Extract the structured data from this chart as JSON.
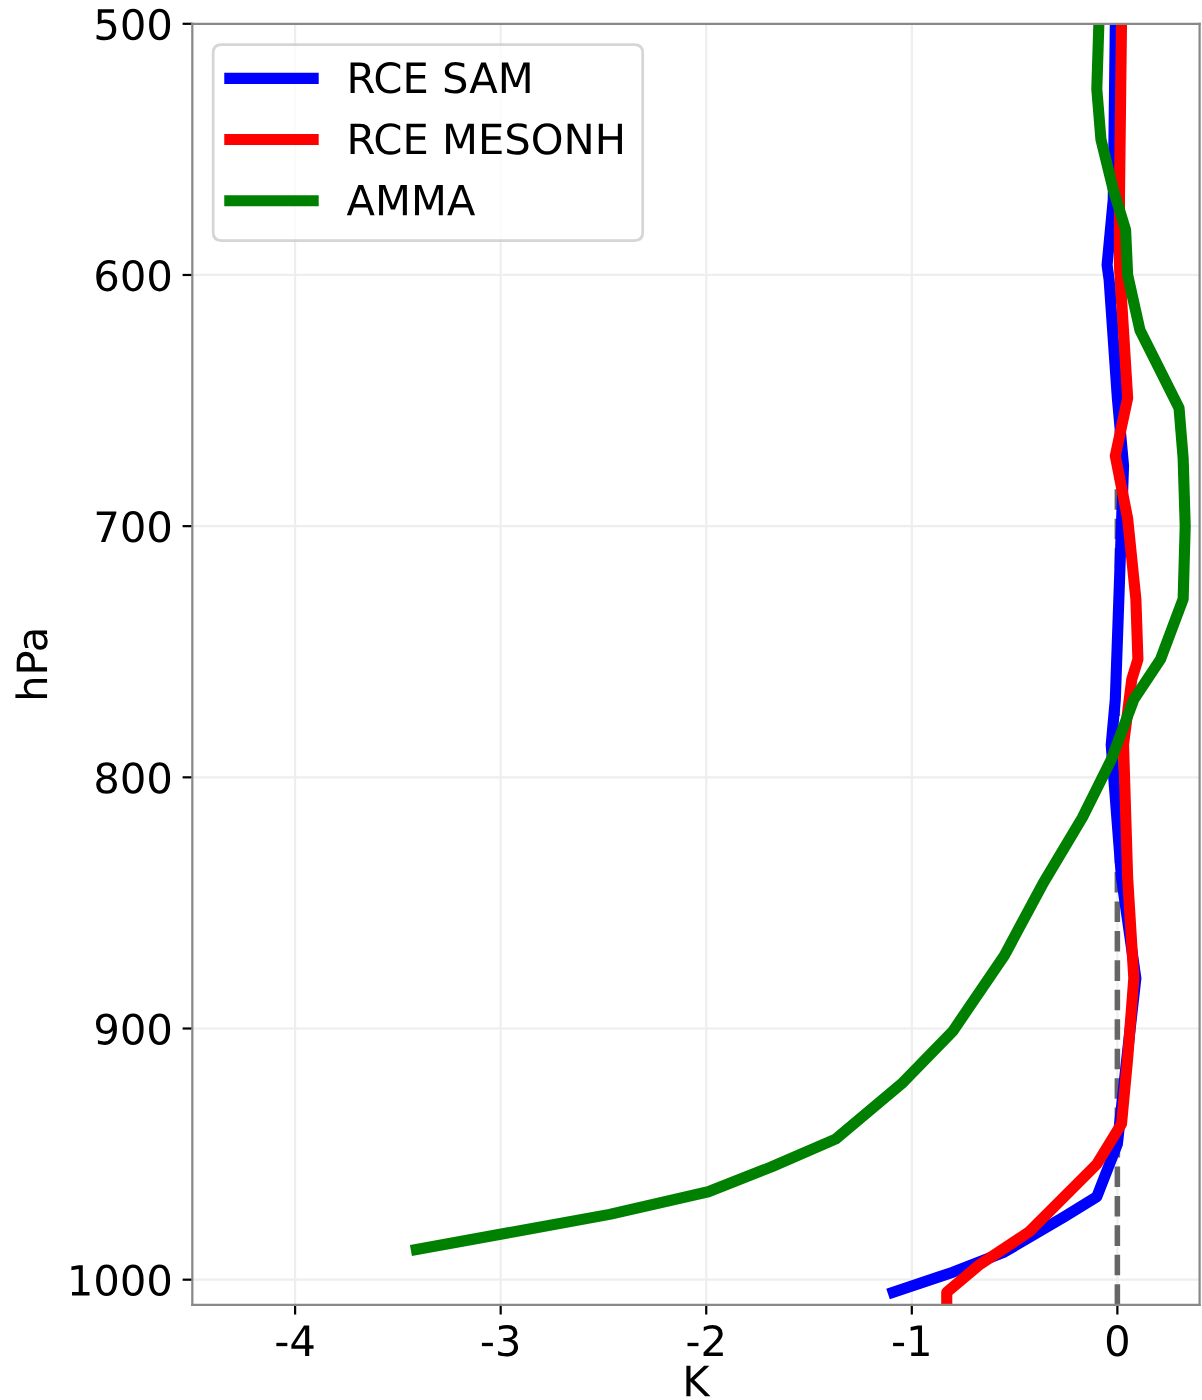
{
  "chart_data": {
    "type": "line",
    "xlabel": "K",
    "ylabel": "hPa",
    "xlim": [
      -4.5,
      0.4
    ],
    "xticks": [
      -4,
      -3,
      -2,
      -1,
      0
    ],
    "ylim": [
      1010,
      500
    ],
    "yticks": [
      500,
      600,
      700,
      800,
      900,
      1000
    ],
    "grid": true,
    "legend": "top left",
    "line_style": "solid",
    "ref_lines": [
      {
        "axis": "x",
        "value": 0,
        "label": null,
        "color": "#666666",
        "line_style": "dashed"
      }
    ],
    "series": [
      {
        "name": "RCE SAM",
        "color": "#0000ff",
        "x": [
          -0.01,
          -0.02,
          -0.05,
          -0.04,
          0.0,
          0.03,
          -0.01,
          -0.03,
          0.02,
          0.09,
          0.05,
          0.0,
          -0.1,
          -0.26,
          -0.55,
          -0.8,
          -1.09
        ],
        "values": [
          500,
          570,
          596,
          602,
          649,
          676,
          769,
          787,
          840,
          880,
          909,
          946,
          967,
          975,
          989,
          997,
          1005
        ]
      },
      {
        "name": "RCE MESONH",
        "color": "#ff0000",
        "x": [
          0.02,
          0.01,
          0.01,
          0.05,
          -0.01,
          0.05,
          0.09,
          0.1,
          0.07,
          0.03,
          0.05,
          0.08,
          0.05,
          0.02,
          -0.1,
          -0.43,
          -0.67,
          -0.83,
          -0.83
        ],
        "values": [
          500,
          570,
          596,
          649,
          672,
          697,
          729,
          753,
          761,
          787,
          840,
          880,
          912,
          938,
          954,
          981,
          994,
          1005,
          1009
        ]
      },
      {
        "name": "AMMA",
        "color": "#008000",
        "x": [
          -0.09,
          -0.1,
          -0.08,
          -0.02,
          0.04,
          0.05,
          0.11,
          0.3,
          0.32,
          0.33,
          0.32,
          0.21,
          0.08,
          -0.03,
          -0.17,
          -0.36,
          -0.55,
          -0.8,
          -1.05,
          -1.37,
          -1.68,
          -1.99,
          -2.47,
          -2.94,
          -3.41
        ],
        "values": [
          500,
          526,
          546,
          566,
          582,
          600,
          622,
          653,
          673,
          700,
          729,
          753,
          769,
          793,
          816,
          842,
          871,
          901,
          922,
          944,
          955,
          965,
          974,
          981,
          988
        ]
      }
    ]
  }
}
